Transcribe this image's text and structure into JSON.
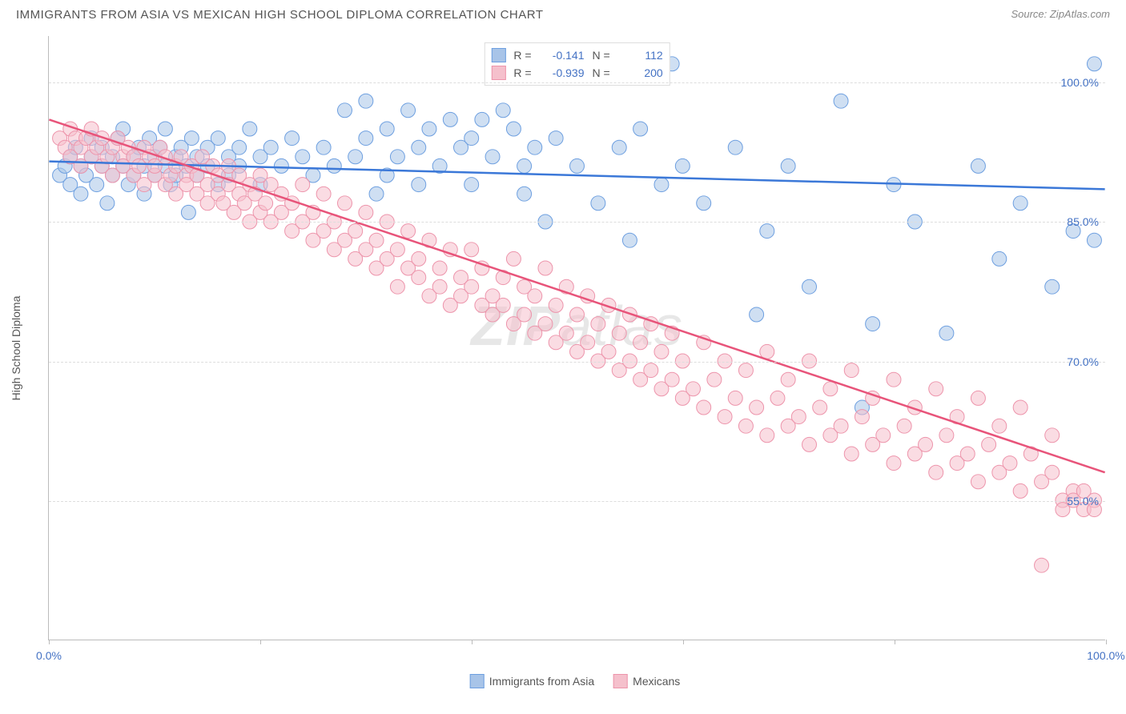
{
  "title": "IMMIGRANTS FROM ASIA VS MEXICAN HIGH SCHOOL DIPLOMA CORRELATION CHART",
  "source": "Source: ZipAtlas.com",
  "ylabel": "High School Diploma",
  "watermark_a": "ZIP",
  "watermark_b": "atlas",
  "chart": {
    "type": "scatter",
    "xlim": [
      0,
      100
    ],
    "ylim": [
      40,
      105
    ],
    "xticks": [
      0,
      20,
      40,
      60,
      80,
      100
    ],
    "xticklabels": [
      "0.0%",
      "",
      "",
      "",
      "",
      "100.0%"
    ],
    "yticks": [
      55,
      70,
      85,
      100
    ],
    "yticklabels": [
      "55.0%",
      "70.0%",
      "85.0%",
      "100.0%"
    ],
    "grid_color": "#dddddd",
    "background": "#ffffff",
    "axis_color": "#bbbbbb",
    "tick_label_color": "#4472c4",
    "tick_fontsize": 14,
    "series": [
      {
        "name": "Immigrants from Asia",
        "legend_label": "Immigrants from Asia",
        "color_fill": "#a8c4e8",
        "color_stroke": "#6d9fe0",
        "marker": "circle",
        "marker_r": 9,
        "fill_opacity": 0.55,
        "line_color": "#3b78d8",
        "line_width": 2.5,
        "R": "-0.141",
        "N": "112",
        "reg": {
          "x1": 0,
          "y1": 91.5,
          "x2": 100,
          "y2": 88.5
        },
        "points": [
          [
            1,
            90
          ],
          [
            1.5,
            91
          ],
          [
            2,
            92
          ],
          [
            2,
            89
          ],
          [
            2.5,
            93
          ],
          [
            3,
            91
          ],
          [
            3,
            88
          ],
          [
            3.5,
            90
          ],
          [
            4,
            92
          ],
          [
            4,
            94
          ],
          [
            4.5,
            89
          ],
          [
            5,
            91
          ],
          [
            5,
            93
          ],
          [
            5.5,
            87
          ],
          [
            6,
            92
          ],
          [
            6,
            90
          ],
          [
            6.5,
            94
          ],
          [
            7,
            91
          ],
          [
            7,
            95
          ],
          [
            7.5,
            89
          ],
          [
            8,
            92
          ],
          [
            8,
            90
          ],
          [
            8.5,
            93
          ],
          [
            9,
            91
          ],
          [
            9,
            88
          ],
          [
            9.5,
            94
          ],
          [
            10,
            92
          ],
          [
            10,
            90
          ],
          [
            10.5,
            93
          ],
          [
            11,
            91
          ],
          [
            11,
            95
          ],
          [
            11.5,
            89
          ],
          [
            12,
            92
          ],
          [
            12,
            90
          ],
          [
            12.5,
            93
          ],
          [
            13,
            91
          ],
          [
            13.2,
            86
          ],
          [
            13.5,
            94
          ],
          [
            14,
            92
          ],
          [
            14,
            90
          ],
          [
            15,
            93
          ],
          [
            15,
            91
          ],
          [
            16,
            89
          ],
          [
            16,
            94
          ],
          [
            17,
            92
          ],
          [
            17,
            90
          ],
          [
            18,
            93
          ],
          [
            18,
            91
          ],
          [
            19,
            95
          ],
          [
            20,
            92
          ],
          [
            20,
            89
          ],
          [
            21,
            93
          ],
          [
            22,
            91
          ],
          [
            23,
            94
          ],
          [
            24,
            92
          ],
          [
            25,
            90
          ],
          [
            26,
            93
          ],
          [
            27,
            91
          ],
          [
            28,
            97
          ],
          [
            29,
            92
          ],
          [
            30,
            98
          ],
          [
            30,
            94
          ],
          [
            31,
            88
          ],
          [
            32,
            95
          ],
          [
            32,
            90
          ],
          [
            33,
            92
          ],
          [
            34,
            97
          ],
          [
            35,
            93
          ],
          [
            35,
            89
          ],
          [
            36,
            95
          ],
          [
            37,
            91
          ],
          [
            38,
            96
          ],
          [
            39,
            93
          ],
          [
            40,
            94
          ],
          [
            40,
            89
          ],
          [
            41,
            96
          ],
          [
            42,
            92
          ],
          [
            43,
            97
          ],
          [
            44,
            95
          ],
          [
            45,
            91
          ],
          [
            45,
            88
          ],
          [
            46,
            93
          ],
          [
            47,
            85
          ],
          [
            48,
            94
          ],
          [
            50,
            91
          ],
          [
            52,
            87
          ],
          [
            54,
            93
          ],
          [
            55,
            83
          ],
          [
            56,
            95
          ],
          [
            58,
            89
          ],
          [
            59,
            102
          ],
          [
            60,
            91
          ],
          [
            62,
            87
          ],
          [
            65,
            93
          ],
          [
            67,
            75
          ],
          [
            68,
            84
          ],
          [
            70,
            91
          ],
          [
            72,
            78
          ],
          [
            75,
            98
          ],
          [
            77,
            65
          ],
          [
            78,
            74
          ],
          [
            80,
            89
          ],
          [
            82,
            85
          ],
          [
            85,
            73
          ],
          [
            88,
            91
          ],
          [
            90,
            81
          ],
          [
            92,
            87
          ],
          [
            95,
            78
          ],
          [
            97,
            84
          ],
          [
            99,
            102
          ],
          [
            99,
            83
          ]
        ]
      },
      {
        "name": "Mexicans",
        "legend_label": "Mexicans",
        "color_fill": "#f5c0cc",
        "color_stroke": "#ed94ab",
        "marker": "circle",
        "marker_r": 9,
        "fill_opacity": 0.55,
        "line_color": "#e8547a",
        "line_width": 2.5,
        "R": "-0.939",
        "N": "200",
        "reg": {
          "x1": 0,
          "y1": 96,
          "x2": 100,
          "y2": 58
        },
        "points": [
          [
            1,
            94
          ],
          [
            1.5,
            93
          ],
          [
            2,
            95
          ],
          [
            2,
            92
          ],
          [
            2.5,
            94
          ],
          [
            3,
            93
          ],
          [
            3,
            91
          ],
          [
            3.5,
            94
          ],
          [
            4,
            92
          ],
          [
            4,
            95
          ],
          [
            4.5,
            93
          ],
          [
            5,
            91
          ],
          [
            5,
            94
          ],
          [
            5.5,
            92
          ],
          [
            6,
            93
          ],
          [
            6,
            90
          ],
          [
            6.5,
            94
          ],
          [
            7,
            92
          ],
          [
            7,
            91
          ],
          [
            7.5,
            93
          ],
          [
            8,
            90
          ],
          [
            8,
            92
          ],
          [
            8.5,
            91
          ],
          [
            9,
            93
          ],
          [
            9,
            89
          ],
          [
            9.5,
            92
          ],
          [
            10,
            90
          ],
          [
            10,
            91
          ],
          [
            10.5,
            93
          ],
          [
            11,
            89
          ],
          [
            11,
            92
          ],
          [
            11.5,
            90
          ],
          [
            12,
            91
          ],
          [
            12,
            88
          ],
          [
            12.5,
            92
          ],
          [
            13,
            90
          ],
          [
            13,
            89
          ],
          [
            13.5,
            91
          ],
          [
            14,
            88
          ],
          [
            14,
            90
          ],
          [
            14.5,
            92
          ],
          [
            15,
            89
          ],
          [
            15,
            87
          ],
          [
            15.5,
            91
          ],
          [
            16,
            88
          ],
          [
            16,
            90
          ],
          [
            16.5,
            87
          ],
          [
            17,
            89
          ],
          [
            17,
            91
          ],
          [
            17.5,
            86
          ],
          [
            18,
            88
          ],
          [
            18,
            90
          ],
          [
            18.5,
            87
          ],
          [
            19,
            89
          ],
          [
            19,
            85
          ],
          [
            19.5,
            88
          ],
          [
            20,
            86
          ],
          [
            20,
            90
          ],
          [
            20.5,
            87
          ],
          [
            21,
            85
          ],
          [
            21,
            89
          ],
          [
            22,
            86
          ],
          [
            22,
            88
          ],
          [
            23,
            84
          ],
          [
            23,
            87
          ],
          [
            24,
            85
          ],
          [
            24,
            89
          ],
          [
            25,
            83
          ],
          [
            25,
            86
          ],
          [
            26,
            84
          ],
          [
            26,
            88
          ],
          [
            27,
            82
          ],
          [
            27,
            85
          ],
          [
            28,
            83
          ],
          [
            28,
            87
          ],
          [
            29,
            81
          ],
          [
            29,
            84
          ],
          [
            30,
            82
          ],
          [
            30,
            86
          ],
          [
            31,
            80
          ],
          [
            31,
            83
          ],
          [
            32,
            81
          ],
          [
            32,
            85
          ],
          [
            33,
            78
          ],
          [
            33,
            82
          ],
          [
            34,
            80
          ],
          [
            34,
            84
          ],
          [
            35,
            79
          ],
          [
            35,
            81
          ],
          [
            36,
            77
          ],
          [
            36,
            83
          ],
          [
            37,
            78
          ],
          [
            37,
            80
          ],
          [
            38,
            76
          ],
          [
            38,
            82
          ],
          [
            39,
            77
          ],
          [
            39,
            79
          ],
          [
            40,
            82
          ],
          [
            40,
            78
          ],
          [
            41,
            76
          ],
          [
            41,
            80
          ],
          [
            42,
            77
          ],
          [
            42,
            75
          ],
          [
            43,
            79
          ],
          [
            43,
            76
          ],
          [
            44,
            74
          ],
          [
            44,
            81
          ],
          [
            45,
            75
          ],
          [
            45,
            78
          ],
          [
            46,
            73
          ],
          [
            46,
            77
          ],
          [
            47,
            74
          ],
          [
            47,
            80
          ],
          [
            48,
            72
          ],
          [
            48,
            76
          ],
          [
            49,
            73
          ],
          [
            49,
            78
          ],
          [
            50,
            71
          ],
          [
            50,
            75
          ],
          [
            51,
            72
          ],
          [
            51,
            77
          ],
          [
            52,
            70
          ],
          [
            52,
            74
          ],
          [
            53,
            71
          ],
          [
            53,
            76
          ],
          [
            54,
            69
          ],
          [
            54,
            73
          ],
          [
            55,
            70
          ],
          [
            55,
            75
          ],
          [
            56,
            68
          ],
          [
            56,
            72
          ],
          [
            57,
            69
          ],
          [
            57,
            74
          ],
          [
            58,
            67
          ],
          [
            58,
            71
          ],
          [
            59,
            68
          ],
          [
            59,
            73
          ],
          [
            60,
            66
          ],
          [
            60,
            70
          ],
          [
            61,
            67
          ],
          [
            62,
            65
          ],
          [
            62,
            72
          ],
          [
            63,
            68
          ],
          [
            64,
            64
          ],
          [
            64,
            70
          ],
          [
            65,
            66
          ],
          [
            66,
            63
          ],
          [
            66,
            69
          ],
          [
            67,
            65
          ],
          [
            68,
            62
          ],
          [
            68,
            71
          ],
          [
            69,
            66
          ],
          [
            70,
            63
          ],
          [
            70,
            68
          ],
          [
            71,
            64
          ],
          [
            72,
            61
          ],
          [
            72,
            70
          ],
          [
            73,
            65
          ],
          [
            74,
            62
          ],
          [
            74,
            67
          ],
          [
            75,
            63
          ],
          [
            76,
            60
          ],
          [
            76,
            69
          ],
          [
            77,
            64
          ],
          [
            78,
            61
          ],
          [
            78,
            66
          ],
          [
            79,
            62
          ],
          [
            80,
            59
          ],
          [
            80,
            68
          ],
          [
            81,
            63
          ],
          [
            82,
            60
          ],
          [
            82,
            65
          ],
          [
            83,
            61
          ],
          [
            84,
            58
          ],
          [
            84,
            67
          ],
          [
            85,
            62
          ],
          [
            86,
            59
          ],
          [
            86,
            64
          ],
          [
            87,
            60
          ],
          [
            88,
            57
          ],
          [
            88,
            66
          ],
          [
            89,
            61
          ],
          [
            90,
            58
          ],
          [
            90,
            63
          ],
          [
            91,
            59
          ],
          [
            92,
            56
          ],
          [
            92,
            65
          ],
          [
            93,
            60
          ],
          [
            94,
            57
          ],
          [
            94,
            48
          ],
          [
            95,
            58
          ],
          [
            95,
            62
          ],
          [
            96,
            55
          ],
          [
            96,
            54
          ],
          [
            97,
            56
          ],
          [
            97,
            55
          ],
          [
            98,
            54
          ],
          [
            98,
            56
          ],
          [
            99,
            55
          ],
          [
            99,
            54
          ]
        ]
      }
    ]
  },
  "legend_top_labels": {
    "R": "R =",
    "N": "N ="
  },
  "legend_bottom": [
    {
      "label": "Immigrants from Asia"
    },
    {
      "label": "Mexicans"
    }
  ]
}
